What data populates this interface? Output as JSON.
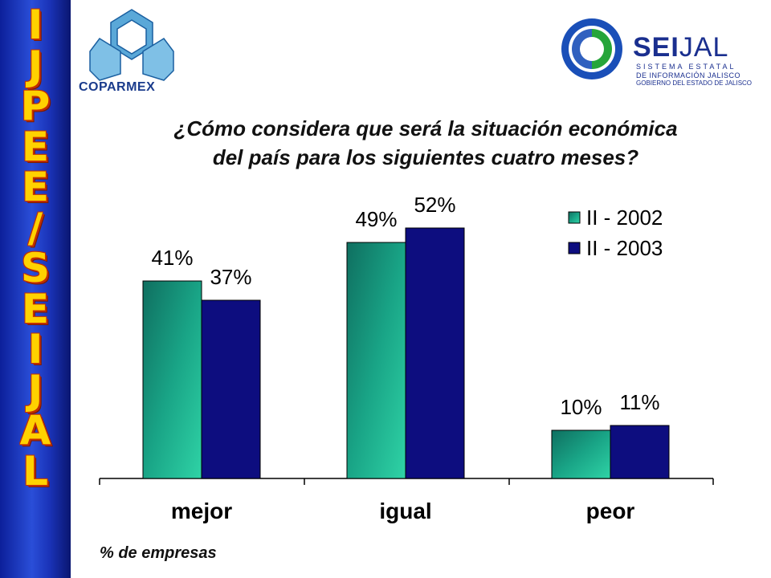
{
  "sidebar": {
    "letters": [
      "I",
      "J",
      "P",
      "E",
      "E",
      "/",
      "S",
      "E",
      "I",
      "J",
      "A",
      "L"
    ]
  },
  "logos": {
    "left_text": "COPARMEX",
    "right_name_bold": "SEI",
    "right_name_rest": "JAL",
    "right_line1": "SISTEMA ESTATAL",
    "right_line2": "DE INFORMACIÓN JALISCO",
    "right_line3": "GOBIERNO DEL ESTADO DE JALISCO"
  },
  "title_line1": "¿Cómo considera que será la situación económica",
  "title_line2": "del país para los siguientes cuatro meses?",
  "footnote": "% de empresas",
  "chart_data": {
    "type": "bar",
    "categories": [
      "mejor",
      "igual",
      "peor"
    ],
    "series": [
      {
        "name": "II - 2002",
        "values": [
          41,
          49,
          10
        ],
        "labels": [
          "41%",
          "49%",
          "10%"
        ],
        "color": "#1aa58a"
      },
      {
        "name": "II - 2003",
        "values": [
          37,
          52,
          11
        ],
        "labels": [
          "37%",
          "52%",
          "11%"
        ],
        "color": "#0d0d7f"
      }
    ],
    "ylim": [
      0,
      60
    ],
    "grid": false,
    "legend": "top-right"
  }
}
